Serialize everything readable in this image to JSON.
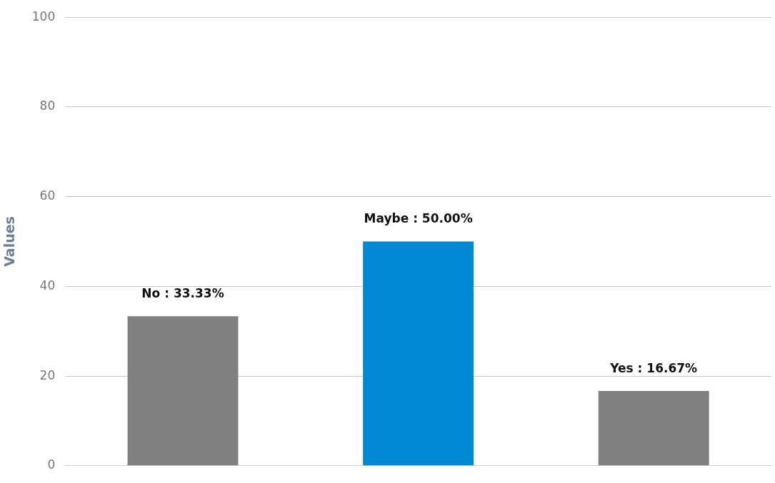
{
  "chart_data": {
    "type": "bar",
    "ylabel": "Values",
    "categories": [
      null,
      null,
      null
    ],
    "values": [
      33.33,
      50.0,
      16.67
    ],
    "colors": [
      "#808080",
      "#0088d2",
      "#808080"
    ],
    "value_labels": [
      "No : 33.33%",
      "Maybe : 50.00%",
      "Yes : 16.67%"
    ],
    "ylim": [
      0,
      100
    ],
    "yticks": [
      0,
      20,
      40,
      60,
      80,
      100
    ],
    "grid": "y",
    "legend": false
  }
}
